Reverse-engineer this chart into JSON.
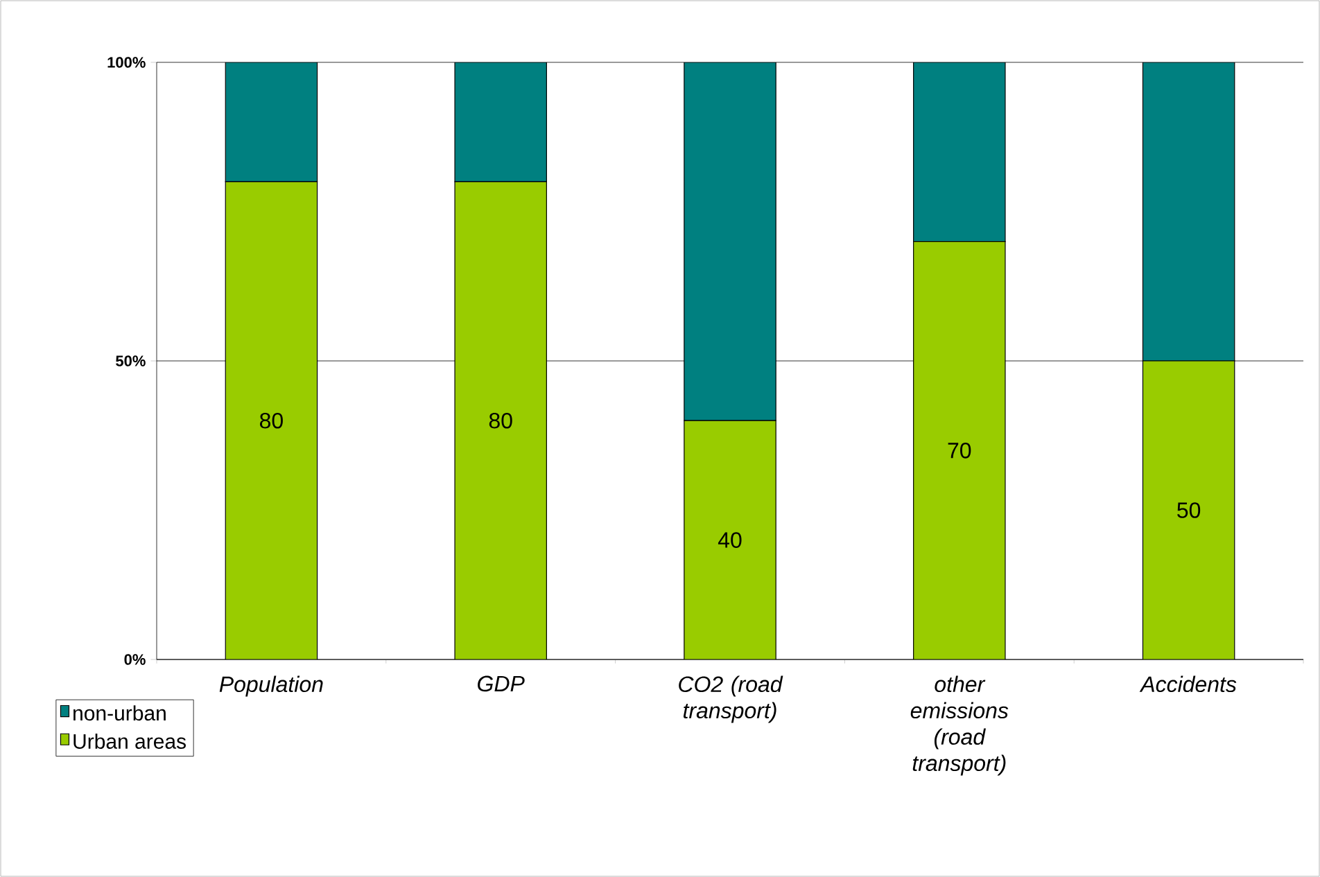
{
  "chart_data": {
    "type": "bar",
    "stacked": true,
    "categories": [
      "Population",
      "GDP",
      "CO2 (road transport)",
      "other emissions (road transport)",
      "Accidents"
    ],
    "series": [
      {
        "name": "Urban areas",
        "color": "#99cc00",
        "values": [
          80,
          80,
          40,
          70,
          50
        ],
        "value_labels": [
          "80",
          "80",
          "40",
          "70",
          "50"
        ]
      },
      {
        "name": "non-urban",
        "color": "#008080",
        "values": [
          20,
          20,
          60,
          30,
          50
        ]
      }
    ],
    "ylim": [
      0,
      100
    ],
    "yticks": [
      {
        "value": 0,
        "label": "0%"
      },
      {
        "value": 50,
        "label": "50%"
      },
      {
        "value": 100,
        "label": "100%"
      }
    ],
    "grid": "y",
    "legend": "bottom left"
  }
}
